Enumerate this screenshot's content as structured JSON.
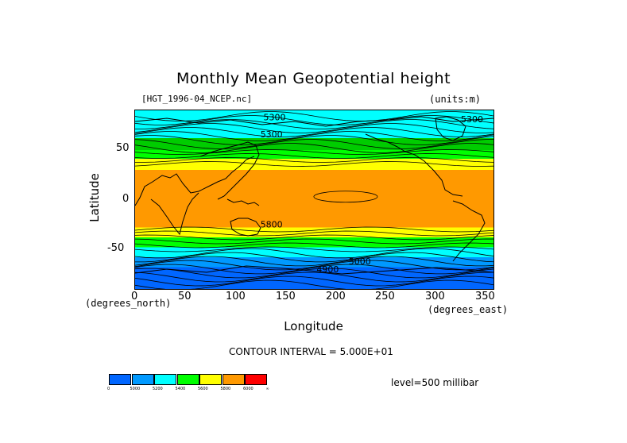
{
  "title": "Monthly Mean Geopotential height",
  "file_label": "[HGT_1996-04_NCEP.nc]",
  "units_label": "(units:m)",
  "contour_interval": "CONTOUR INTERVAL = 5.000E+01",
  "level_label": "level=500 millibar",
  "chart_data": {
    "type": "heatmap",
    "title": "Monthly Mean Geopotential height",
    "xlabel": "Longitude",
    "ylabel": "Latitude",
    "x_units": "(degrees_north)",
    "y_units": "(degrees_east)",
    "xlim": [
      0,
      357.5
    ],
    "ylim": [
      -90,
      90
    ],
    "x_ticks": [
      0,
      50,
      100,
      150,
      200,
      250,
      300,
      350
    ],
    "y_ticks": [
      50,
      0,
      -50
    ],
    "contour_labels": [
      {
        "text": "5300",
        "lon": 128,
        "lat": 80
      },
      {
        "text": "5300",
        "lon": 125,
        "lat": 63
      },
      {
        "text": "5300",
        "lon": 325,
        "lat": 78
      },
      {
        "text": "5800",
        "lon": 125,
        "lat": -28
      },
      {
        "text": "5000",
        "lon": 213,
        "lat": -65
      },
      {
        "text": "4900",
        "lon": 181,
        "lat": -73
      }
    ],
    "bands": [
      {
        "lat_from": 90,
        "lat_to": 62,
        "color": "#00ffff",
        "level": 5200
      },
      {
        "lat_from": 62,
        "lat_to": 50,
        "color": "#00cc00",
        "level": 5400
      },
      {
        "lat_from": 50,
        "lat_to": 41,
        "color": "#00ff00",
        "level": 5400
      },
      {
        "lat_from": 41,
        "lat_to": 30,
        "color": "#ffff00",
        "level": 5600
      },
      {
        "lat_from": 30,
        "lat_to": -28,
        "color": "#ff9900",
        "level": 5800
      },
      {
        "lat_from": -28,
        "lat_to": -38,
        "color": "#ffff00",
        "level": 5600
      },
      {
        "lat_from": -38,
        "lat_to": -48,
        "color": "#00ff00",
        "level": 5400
      },
      {
        "lat_from": -48,
        "lat_to": -58,
        "color": "#00ffff",
        "level": 5200
      },
      {
        "lat_from": -58,
        "lat_to": -68,
        "color": "#0099ff",
        "level": 5000
      },
      {
        "lat_from": -68,
        "lat_to": -90,
        "color": "#0066ff",
        "level": 4900
      }
    ],
    "colorbar": {
      "colors": [
        "#0066ff",
        "#0099ff",
        "#00ffff",
        "#00ff00",
        "#ffff00",
        "#ff9900",
        "#ff0000"
      ],
      "labels": [
        "0",
        "5000",
        "5200",
        "5400",
        "5600",
        "5800",
        "6000",
        "∞"
      ]
    }
  }
}
